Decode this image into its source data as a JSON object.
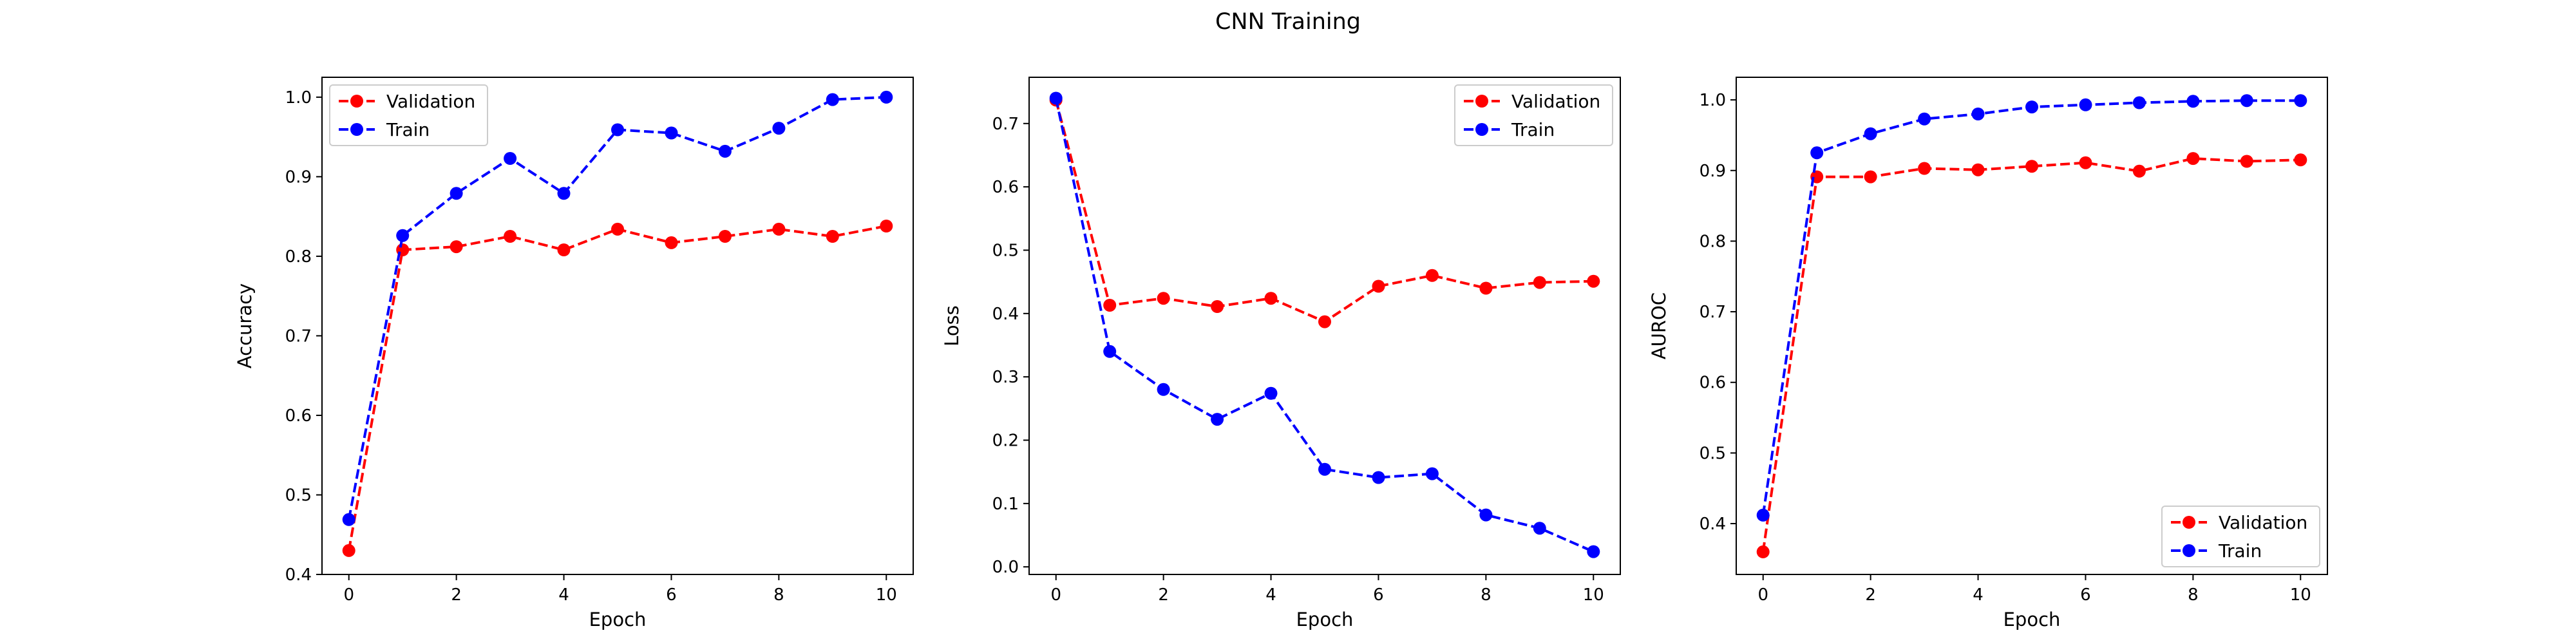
{
  "figure": {
    "title": "CNN Training"
  },
  "chart_data": [
    {
      "type": "line",
      "title": "",
      "xlabel": "Epoch",
      "ylabel": "Accuracy",
      "x": [
        0,
        1,
        2,
        3,
        4,
        5,
        6,
        7,
        8,
        9,
        10
      ],
      "xlim": [
        -0.5,
        10.5
      ],
      "ylim": [
        0.4,
        1.025
      ],
      "xticks": [
        0,
        2,
        4,
        6,
        8,
        10
      ],
      "yticks": [
        0.4,
        0.5,
        0.6,
        0.7,
        0.8,
        0.9,
        1.0
      ],
      "ytick_labels": [
        "0.4",
        "0.5",
        "0.6",
        "0.7",
        "0.8",
        "0.9",
        "1.0"
      ],
      "grid": false,
      "legend_position": "upper-left",
      "series": [
        {
          "name": "Validation",
          "color": "#ff0000",
          "linestyle": "dashed",
          "marker": "circle",
          "values": [
            0.43,
            0.808,
            0.812,
            0.825,
            0.808,
            0.834,
            0.817,
            0.825,
            0.834,
            0.825,
            0.838
          ]
        },
        {
          "name": "Train",
          "color": "#0000ff",
          "linestyle": "dashed",
          "marker": "circle",
          "values": [
            0.469,
            0.826,
            0.879,
            0.923,
            0.879,
            0.959,
            0.955,
            0.932,
            0.961,
            0.997,
            1.0
          ]
        }
      ]
    },
    {
      "type": "line",
      "title": "",
      "xlabel": "Epoch",
      "ylabel": "Loss",
      "x": [
        0,
        1,
        2,
        3,
        4,
        5,
        6,
        7,
        8,
        9,
        10
      ],
      "xlim": [
        -0.5,
        10.5
      ],
      "ylim": [
        -0.012,
        0.773
      ],
      "xticks": [
        0,
        2,
        4,
        6,
        8,
        10
      ],
      "yticks": [
        0.0,
        0.1,
        0.2,
        0.3,
        0.4,
        0.5,
        0.6,
        0.7
      ],
      "ytick_labels": [
        "0.0",
        "0.1",
        "0.2",
        "0.3",
        "0.4",
        "0.5",
        "0.6",
        "0.7"
      ],
      "grid": false,
      "legend_position": "upper-right",
      "series": [
        {
          "name": "Validation",
          "color": "#ff0000",
          "linestyle": "dashed",
          "marker": "circle",
          "values": [
            0.737,
            0.413,
            0.424,
            0.411,
            0.424,
            0.387,
            0.443,
            0.46,
            0.44,
            0.449,
            0.451
          ]
        },
        {
          "name": "Train",
          "color": "#0000ff",
          "linestyle": "dashed",
          "marker": "circle",
          "values": [
            0.74,
            0.34,
            0.28,
            0.233,
            0.274,
            0.154,
            0.141,
            0.147,
            0.082,
            0.061,
            0.024
          ]
        }
      ]
    },
    {
      "type": "line",
      "title": "",
      "xlabel": "Epoch",
      "ylabel": "AUROC",
      "x": [
        0,
        1,
        2,
        3,
        4,
        5,
        6,
        7,
        8,
        9,
        10
      ],
      "xlim": [
        -0.5,
        10.5
      ],
      "ylim": [
        0.328,
        1.032
      ],
      "xticks": [
        0,
        2,
        4,
        6,
        8,
        10
      ],
      "yticks": [
        0.4,
        0.5,
        0.6,
        0.7,
        0.8,
        0.9,
        1.0
      ],
      "ytick_labels": [
        "0.4",
        "0.5",
        "0.6",
        "0.7",
        "0.8",
        "0.9",
        "1.0"
      ],
      "grid": false,
      "legend_position": "lower-right",
      "series": [
        {
          "name": "Validation",
          "color": "#ff0000",
          "linestyle": "dashed",
          "marker": "circle",
          "values": [
            0.36,
            0.891,
            0.891,
            0.903,
            0.901,
            0.906,
            0.911,
            0.899,
            0.917,
            0.913,
            0.915
          ]
        },
        {
          "name": "Train",
          "color": "#0000ff",
          "linestyle": "dashed",
          "marker": "circle",
          "values": [
            0.412,
            0.925,
            0.952,
            0.973,
            0.98,
            0.99,
            0.993,
            0.996,
            0.998,
            0.999,
            0.999
          ]
        }
      ]
    }
  ]
}
